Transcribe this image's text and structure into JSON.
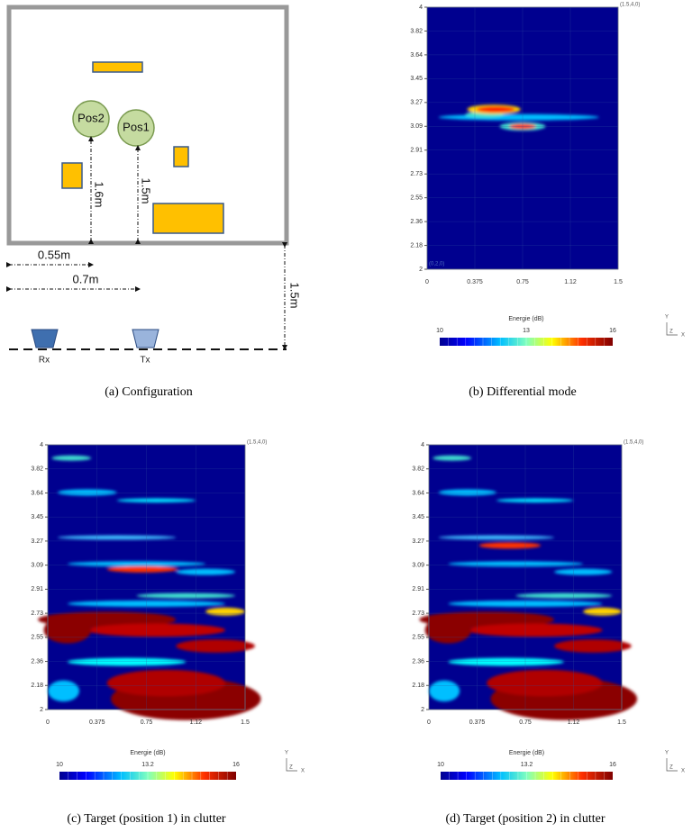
{
  "configuration": {
    "caption": "(a) Configuration",
    "labels": {
      "pos2": "Pos2",
      "pos1": "Pos1",
      "dist_pos2": "1.6m",
      "dist_pos1": "1.5m",
      "offset_rx": "0.55m",
      "offset_tx": "0.7m",
      "standoff": "1.5m",
      "rx": "Rx",
      "tx": "Tx"
    }
  },
  "panels": [
    {
      "caption": "(b) Differential mode",
      "x_ticks": [
        "0",
        "0.375",
        "0.75",
        "1.12",
        "1.5"
      ],
      "y_ticks": [
        "4",
        "3.82",
        "3.64",
        "3.45",
        "3.27",
        "3.09",
        "2.91",
        "2.73",
        "2.55",
        "2.36",
        "2.18",
        "2"
      ],
      "corner_top": "(1.5,4,0)",
      "corner_bottom": "(0,2,0)",
      "colorbar_title": "Energie (dB)",
      "colorbar_labels": [
        "10",
        "13",
        "16"
      ],
      "axis_y": "Y",
      "axis_z": "Z",
      "axis_x": "X"
    },
    {
      "caption": "(c) Target (position 1) in clutter",
      "x_ticks": [
        "0",
        "0.375",
        "0.75",
        "1.12",
        "1.5"
      ],
      "y_ticks": [
        "4",
        "3.82",
        "3.64",
        "3.45",
        "3.27",
        "3.09",
        "2.91",
        "2.73",
        "2.55",
        "2.36",
        "2.18",
        "2"
      ],
      "corner_top": "(1.5,4,0)",
      "colorbar_title": "Energie (dB)",
      "colorbar_labels": [
        "10",
        "13.2",
        "16"
      ],
      "axis_y": "Y",
      "axis_z": "Z",
      "axis_x": "X"
    },
    {
      "caption": "(d) Target (position 2) in clutter",
      "x_ticks": [
        "0",
        "0.375",
        "0.75",
        "1.12",
        "1.5"
      ],
      "y_ticks": [
        "4",
        "3.82",
        "3.64",
        "3.45",
        "3.27",
        "3.09",
        "2.91",
        "2.73",
        "2.55",
        "2.36",
        "2.18",
        "2"
      ],
      "corner_top": "(1.5,4,0)",
      "colorbar_title": "Energie (dB)",
      "colorbar_labels": [
        "10",
        "13.2",
        "16"
      ],
      "axis_y": "Y",
      "axis_z": "Z",
      "axis_x": "X"
    }
  ]
}
